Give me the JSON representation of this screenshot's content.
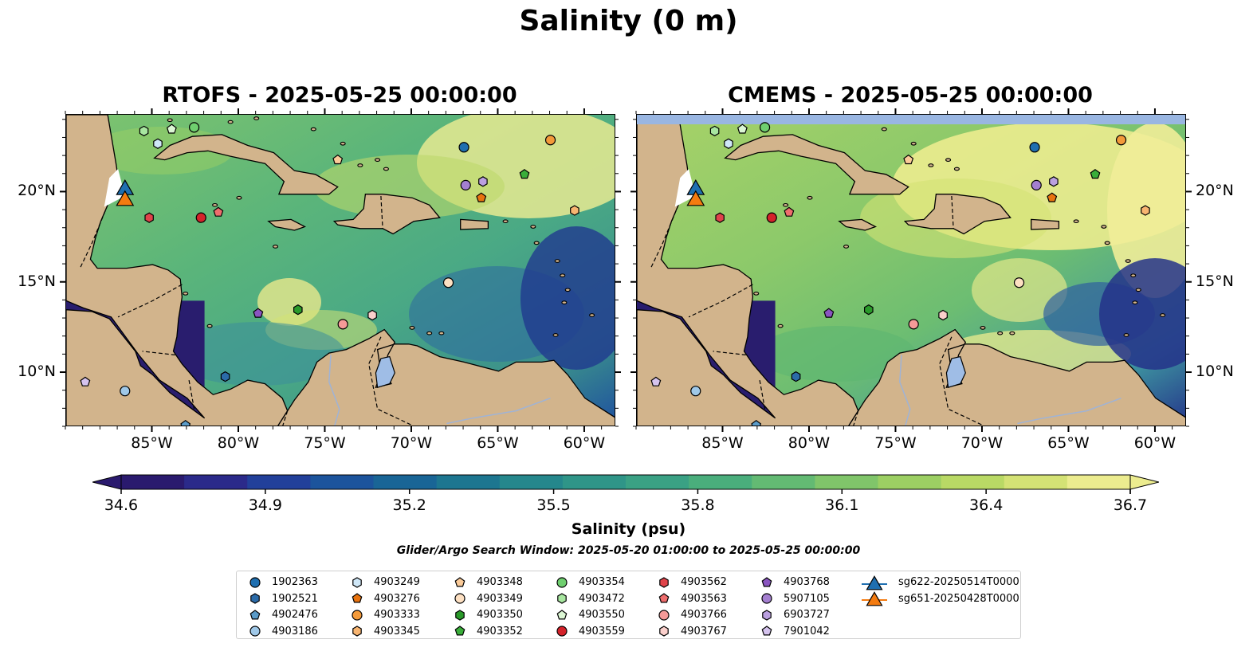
{
  "title": "Salinity (0 m)",
  "panels": [
    {
      "id": "rtofs",
      "title": "RTOFS - 2025-05-25 00:00:00"
    },
    {
      "id": "cmems",
      "title": "CMEMS - 2025-05-25 00:00:00"
    }
  ],
  "axes": {
    "lon_ticks": [
      "85°W",
      "80°W",
      "75°W",
      "70°W",
      "65°W",
      "60°W"
    ],
    "lat_ticks": [
      "20°N",
      "15°N",
      "10°N"
    ]
  },
  "colorbar": {
    "label": "Salinity (psu)",
    "range": [
      34.6,
      36.7
    ],
    "ticks": [
      "34.6",
      "34.9",
      "35.2",
      "35.5",
      "35.8",
      "36.1",
      "36.4",
      "36.7"
    ],
    "colors": [
      "#2a1a6e",
      "#2b2a8a",
      "#22409a",
      "#1c549c",
      "#196596",
      "#1d7690",
      "#25878c",
      "#2f9588",
      "#3aa184",
      "#4aae7c",
      "#63ba73",
      "#80c56a",
      "#9ccf63",
      "#b9d965",
      "#d4e275",
      "#ecec8f"
    ],
    "extend": "both"
  },
  "search_window": "Glider/Argo Search Window: 2025-05-20 01:00:00 to 2025-05-25 00:00:00",
  "legend": [
    {
      "label": "1902363",
      "marker": "circle",
      "color": "#1f6fb0"
    },
    {
      "label": "1902521",
      "marker": "hexagon",
      "color": "#2b6ba8"
    },
    {
      "label": "4902476",
      "marker": "pentagon",
      "color": "#5b9bc8"
    },
    {
      "label": "4903186",
      "marker": "circle",
      "color": "#9fc8e8"
    },
    {
      "label": "4903249",
      "marker": "hexagon",
      "color": "#cfe7f7"
    },
    {
      "label": "4903276",
      "marker": "pentagon",
      "color": "#e8730f"
    },
    {
      "label": "4903333",
      "marker": "circle",
      "color": "#f39a3a"
    },
    {
      "label": "4903345",
      "marker": "hexagon",
      "color": "#f8b571"
    },
    {
      "label": "4903348",
      "marker": "pentagon",
      "color": "#fbcb99"
    },
    {
      "label": "4903349",
      "marker": "circle",
      "color": "#fde0c2"
    },
    {
      "label": "4903350",
      "marker": "hexagon",
      "color": "#2a9a2a"
    },
    {
      "label": "4903352",
      "marker": "pentagon",
      "color": "#3aae3a"
    },
    {
      "label": "4903354",
      "marker": "circle",
      "color": "#6fcf6f"
    },
    {
      "label": "4903472",
      "marker": "hexagon",
      "color": "#a8e6a0"
    },
    {
      "label": "4903550",
      "marker": "pentagon",
      "color": "#dcf7d4"
    },
    {
      "label": "4903559",
      "marker": "circle",
      "color": "#d4222a"
    },
    {
      "label": "4903562",
      "marker": "hexagon",
      "color": "#e0434a"
    },
    {
      "label": "4903563",
      "marker": "pentagon",
      "color": "#ee6d6d"
    },
    {
      "label": "4903766",
      "marker": "circle",
      "color": "#f59a98"
    },
    {
      "label": "4903767",
      "marker": "hexagon",
      "color": "#fbd0cc"
    },
    {
      "label": "4903768",
      "marker": "pentagon",
      "color": "#8a55c0"
    },
    {
      "label": "5907105",
      "marker": "circle",
      "color": "#a47fd0"
    },
    {
      "label": "6903727",
      "marker": "hexagon",
      "color": "#bba0e0"
    },
    {
      "label": "7901042",
      "marker": "pentagon",
      "color": "#d5c3ee"
    },
    {
      "label": "sg622-20250514T0000",
      "marker": "triangle",
      "color": "#1f6fb0"
    },
    {
      "label": "sg651-20250428T0000",
      "marker": "triangle",
      "color": "#f47b10"
    }
  ],
  "floats": [
    {
      "id": "1902363",
      "lon": -67.0,
      "lat": 22.5
    },
    {
      "id": "1902521",
      "lon": -80.8,
      "lat": 9.8
    },
    {
      "id": "4902476",
      "lon": -83.1,
      "lat": 7.1
    },
    {
      "id": "4903186",
      "lon": -86.6,
      "lat": 9.0
    },
    {
      "id": "4903249",
      "lon": -84.7,
      "lat": 22.7
    },
    {
      "id": "4903276",
      "lon": -66.0,
      "lat": 19.7
    },
    {
      "id": "4903333",
      "lon": -62.0,
      "lat": 22.9
    },
    {
      "id": "4903345",
      "lon": -60.6,
      "lat": 19.0
    },
    {
      "id": "4903348",
      "lon": -74.3,
      "lat": 21.8
    },
    {
      "id": "4903349",
      "lon": -67.9,
      "lat": 15.0
    },
    {
      "id": "4903350",
      "lon": -76.6,
      "lat": 13.5
    },
    {
      "id": "4903352",
      "lon": -63.5,
      "lat": 21.0
    },
    {
      "id": "4903354",
      "lon": -82.6,
      "lat": 23.6
    },
    {
      "id": "4903472",
      "lon": -85.5,
      "lat": 23.4
    },
    {
      "id": "4903550",
      "lon": -83.9,
      "lat": 23.5
    },
    {
      "id": "4903559",
      "lon": -82.2,
      "lat": 18.6
    },
    {
      "id": "4903562",
      "lon": -85.2,
      "lat": 18.6
    },
    {
      "id": "4903563",
      "lon": -81.2,
      "lat": 18.9
    },
    {
      "id": "4903766",
      "lon": -74.0,
      "lat": 12.7
    },
    {
      "id": "4903767",
      "lon": -72.3,
      "lat": 13.2
    },
    {
      "id": "4903768",
      "lon": -78.9,
      "lat": 13.3
    },
    {
      "id": "5907105",
      "lon": -66.9,
      "lat": 20.4
    },
    {
      "id": "6903727",
      "lon": -65.9,
      "lat": 20.6
    },
    {
      "id": "7901042",
      "lon": -88.9,
      "lat": 9.5
    },
    {
      "id": "sg622-20250514T0000",
      "lon": -86.6,
      "lat": 20.3
    },
    {
      "id": "sg651-20250428T0000",
      "lon": -86.6,
      "lat": 19.7
    }
  ]
}
